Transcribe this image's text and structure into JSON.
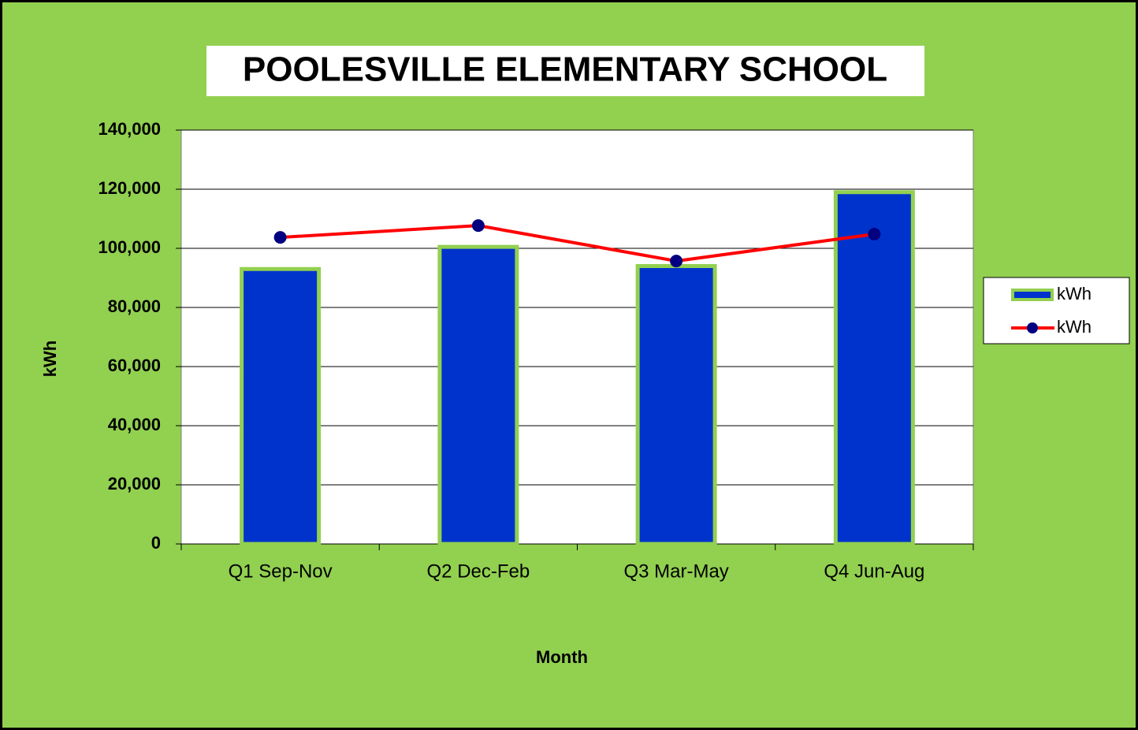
{
  "chart_data": {
    "type": "combo",
    "title": "POOLESVILLE ELEMENTARY SCHOOL",
    "x_label": "Month",
    "y_label": "kWh",
    "categories": [
      "Q1 Sep-Nov",
      "Q2 Dec-Feb",
      "Q3 Mar-May",
      "Q4 Jun-Aug"
    ],
    "series": [
      {
        "name": "kWh",
        "type": "bar",
        "color": "#0033cc",
        "values": [
          93000,
          100500,
          94000,
          119000
        ]
      },
      {
        "name": "kWh",
        "type": "line",
        "color": "#ff0000",
        "marker_color": "#000080",
        "values": [
          103700,
          107700,
          95700,
          104800
        ]
      }
    ],
    "ylim": [
      0,
      140000
    ],
    "yticks": [
      0,
      {
        "value": 20000,
        "label": "20,000"
      },
      {
        "value": 40000,
        "label": "40,000"
      },
      {
        "value": 60000,
        "label": "60,000"
      },
      {
        "value": 80000,
        "label": "80,000"
      },
      {
        "value": 100000,
        "label": "100,000"
      },
      {
        "value": 120000,
        "label": "120,000"
      },
      {
        "value": 140000,
        "label": "140,000"
      }
    ],
    "grid": true,
    "legend": "right"
  }
}
